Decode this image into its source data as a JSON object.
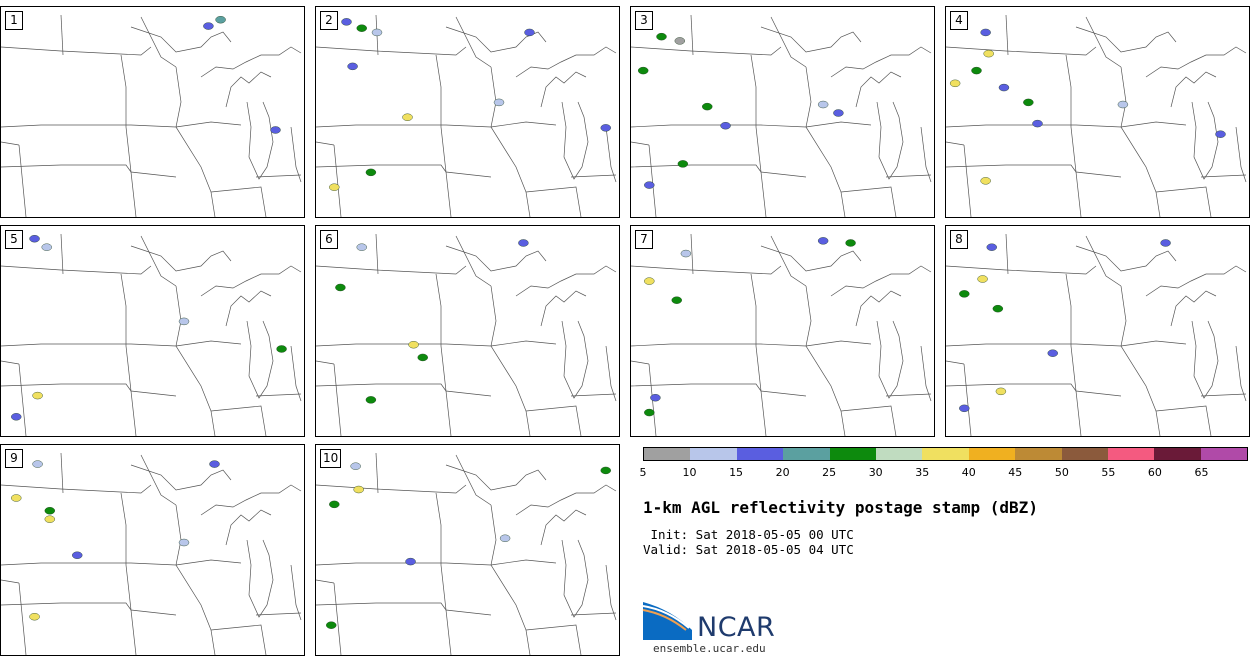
{
  "panels": [
    {
      "label": "1"
    },
    {
      "label": "2"
    },
    {
      "label": "3"
    },
    {
      "label": "4"
    },
    {
      "label": "5"
    },
    {
      "label": "6"
    },
    {
      "label": "7"
    },
    {
      "label": "8"
    },
    {
      "label": "9"
    },
    {
      "label": "10"
    }
  ],
  "colorbar": {
    "colors": [
      "#a0a0a0",
      "#b8c6ea",
      "#5a5ee0",
      "#5ba0a0",
      "#0d8a0d",
      "#c0dcc0",
      "#f0e060",
      "#f0b020",
      "#bd8a35",
      "#8b5a3c",
      "#f45a80",
      "#6a1a38",
      "#b04aa8"
    ],
    "ticks": [
      "5",
      "10",
      "15",
      "20",
      "25",
      "30",
      "35",
      "40",
      "45",
      "50",
      "55",
      "60",
      "65"
    ]
  },
  "title": "1-km AGL reflectivity postage stamp (dBZ)",
  "init_line": " Init: Sat 2018-05-05 00 UTC",
  "valid_line": "Valid: Sat 2018-05-05 04 UTC",
  "logo": {
    "text": "NCAR",
    "site": "ensemble.ucar.edu"
  }
}
